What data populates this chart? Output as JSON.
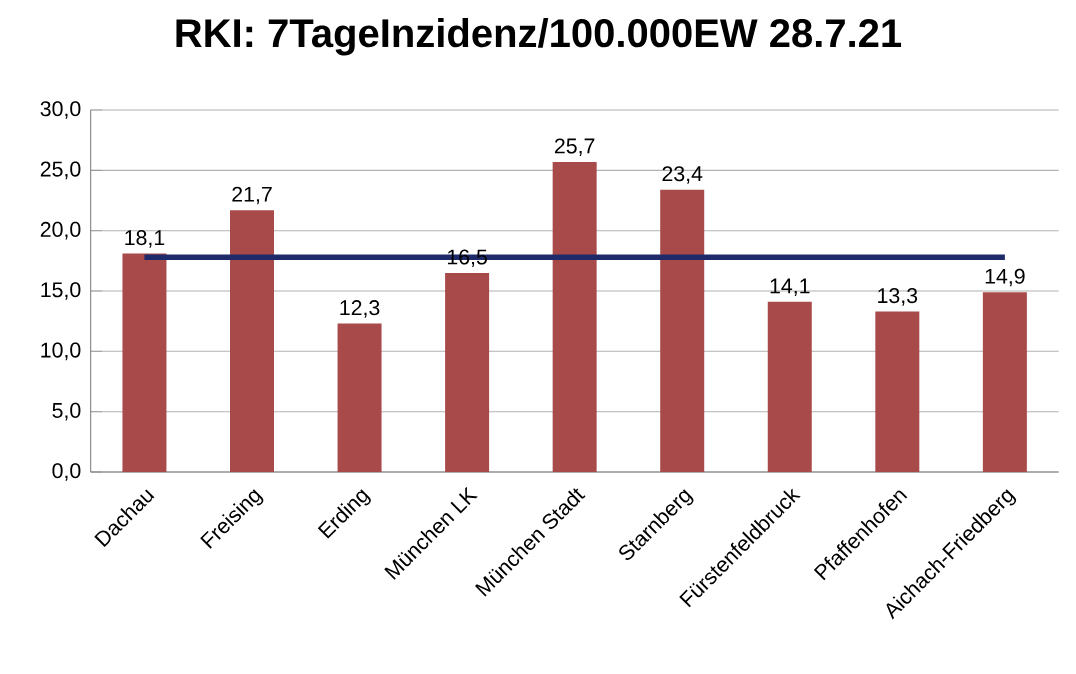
{
  "chart_data": {
    "type": "bar",
    "title": "RKI: 7TageInzidenz/100.000EW 28.7.21",
    "categories": [
      "Dachau",
      "Freising",
      "Erding",
      "München LK",
      "München Stadt",
      "Starnberg",
      "Fürstenfeldbruck",
      "Pfaffenhofen",
      "Aichach-Friedberg"
    ],
    "values": [
      18.1,
      21.7,
      12.3,
      16.5,
      25.7,
      23.4,
      14.1,
      13.3,
      14.9
    ],
    "value_labels": [
      "18,1",
      "21,7",
      "12,3",
      "16,5",
      "25,7",
      "23,4",
      "14,1",
      "13,3",
      "14,9"
    ],
    "color": "#a84a4a",
    "ylim": [
      0,
      30
    ],
    "yticks": [
      {
        "value": 0,
        "label": "0,0"
      },
      {
        "value": 5,
        "label": "5,0"
      },
      {
        "value": 10,
        "label": "10,0"
      },
      {
        "value": 15,
        "label": "15,0"
      },
      {
        "value": 20,
        "label": "20,0"
      },
      {
        "value": 25,
        "label": "25,0"
      },
      {
        "value": 30,
        "label": "30,0"
      }
    ],
    "grid": "y",
    "ref_lines": [
      {
        "axis": "y",
        "value": 17.8,
        "color": "#1f2a6b"
      }
    ]
  }
}
